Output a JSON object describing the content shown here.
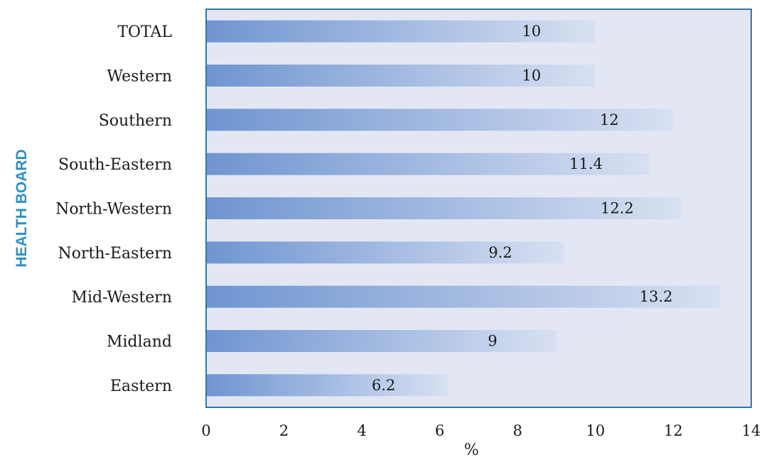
{
  "chart_data": {
    "type": "bar",
    "orientation": "horizontal",
    "categories": [
      "TOTAL",
      "Western",
      "Southern",
      "South-Eastern",
      "North-Western",
      "North-Eastern",
      "Mid-Western",
      "Midland",
      "Eastern"
    ],
    "values": [
      10,
      10,
      12,
      11.4,
      12.2,
      9.2,
      13.2,
      9,
      6.2
    ],
    "value_labels": [
      "10",
      "10",
      "12",
      "11.4",
      "12.2",
      "9.2",
      "13.2",
      "9",
      "6.2"
    ],
    "xlabel": "%",
    "ylabel": "HEALTH BOARD",
    "xlim": [
      0,
      14
    ],
    "xticks": [
      "0",
      "2",
      "4",
      "6",
      "8",
      "10",
      "12",
      "14"
    ],
    "grid": false,
    "legend": "none"
  },
  "colors": {
    "plot_background": "#e3e7f4",
    "plot_border": "#2e7aa6",
    "bar_start": "#6f95d0",
    "bar_end": "#d8e0f2",
    "axis_title": "#2e8fc4"
  }
}
